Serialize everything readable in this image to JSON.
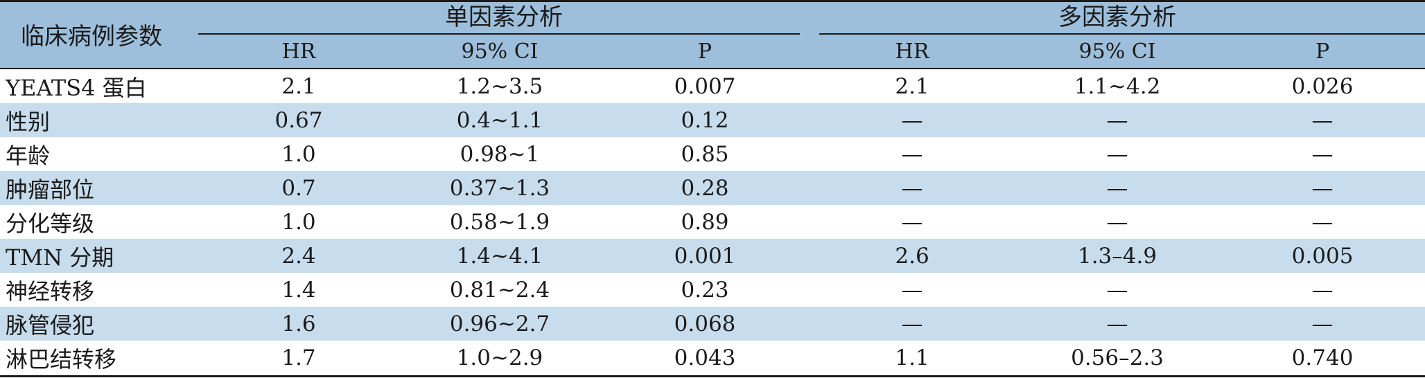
{
  "table": {
    "row_header": "临床病例参数",
    "groups": [
      {
        "title": "单因素分析",
        "columns": [
          "HR",
          "95% CI",
          "P"
        ]
      },
      {
        "title": "多因素分析",
        "columns": [
          "HR",
          "95% CI",
          "P"
        ]
      }
    ],
    "rows": [
      {
        "param": "YEATS4 蛋白",
        "cells": [
          "2.1",
          "1.2~3.5",
          "0.007",
          "2.1",
          "1.1~4.2",
          "0.026"
        ]
      },
      {
        "param": "性别",
        "cells": [
          "0.67",
          "0.4~1.1",
          "0.12",
          "—",
          "—",
          "—"
        ]
      },
      {
        "param": "年龄",
        "cells": [
          "1.0",
          "0.98~1",
          "0.85",
          "—",
          "—",
          "—"
        ]
      },
      {
        "param": "肿瘤部位",
        "cells": [
          "0.7",
          "0.37~1.3",
          "0.28",
          "—",
          "—",
          "—"
        ]
      },
      {
        "param": "分化等级",
        "cells": [
          "1.0",
          "0.58~1.9",
          "0.89",
          "—",
          "—",
          "—"
        ]
      },
      {
        "param": "TMN 分期",
        "cells": [
          "2.4",
          "1.4~4.1",
          "0.001",
          "2.6",
          "1.3–4.9",
          "0.005"
        ]
      },
      {
        "param": "神经转移",
        "cells": [
          "1.4",
          "0.81~2.4",
          "0.23",
          "—",
          "—",
          "—"
        ]
      },
      {
        "param": "脉管侵犯",
        "cells": [
          "1.6",
          "0.96~2.7",
          "0.068",
          "—",
          "—",
          "—"
        ]
      },
      {
        "param": "淋巴结转移",
        "cells": [
          "1.7",
          "1.0~2.9",
          "0.043",
          "1.1",
          "0.56–2.3",
          "0.740"
        ]
      }
    ]
  },
  "colors": {
    "header_bg": "#9dbfdc",
    "stripe_bg": "#c7dcec",
    "rule": "#1a1a1a"
  }
}
